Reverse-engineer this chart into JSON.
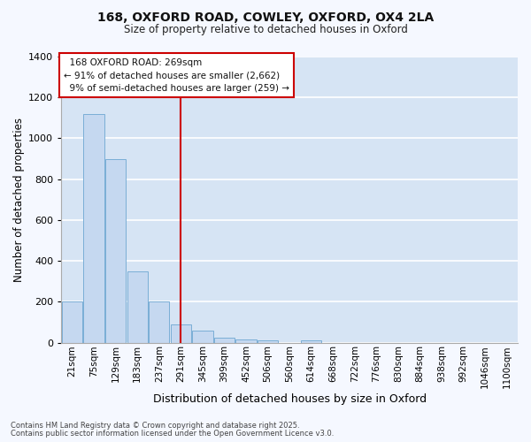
{
  "title_line1": "168, OXFORD ROAD, COWLEY, OXFORD, OX4 2LA",
  "title_line2": "Size of property relative to detached houses in Oxford",
  "xlabel": "Distribution of detached houses by size in Oxford",
  "ylabel": "Number of detached properties",
  "footnote1": "Contains HM Land Registry data © Crown copyright and database right 2025.",
  "footnote2": "Contains public sector information licensed under the Open Government Licence v3.0.",
  "bar_color": "#c5d8f0",
  "bar_edge_color": "#7aaed6",
  "plot_bg_color": "#d6e4f4",
  "fig_bg_color": "#f5f8ff",
  "grid_color": "#ffffff",
  "vline_color": "#cc0000",
  "annotation_border_color": "#cc0000",
  "annotation_bg": "#ffffff",
  "categories": [
    "21sqm",
    "75sqm",
    "129sqm",
    "183sqm",
    "237sqm",
    "291sqm",
    "345sqm",
    "399sqm",
    "452sqm",
    "506sqm",
    "560sqm",
    "614sqm",
    "668sqm",
    "722sqm",
    "776sqm",
    "830sqm",
    "884sqm",
    "938sqm",
    "992sqm",
    "1046sqm",
    "1100sqm"
  ],
  "values": [
    200,
    1120,
    900,
    350,
    200,
    90,
    60,
    25,
    15,
    10,
    0,
    10,
    0,
    0,
    0,
    0,
    0,
    0,
    0,
    0,
    0
  ],
  "vline_x": 5,
  "property_label": "168 OXFORD ROAD: 269sqm",
  "pct_smaller": 91,
  "count_smaller": 2662,
  "pct_larger": 9,
  "count_larger": 259,
  "ylim_max": 1400,
  "yticks": [
    0,
    200,
    400,
    600,
    800,
    1000,
    1200,
    1400
  ]
}
